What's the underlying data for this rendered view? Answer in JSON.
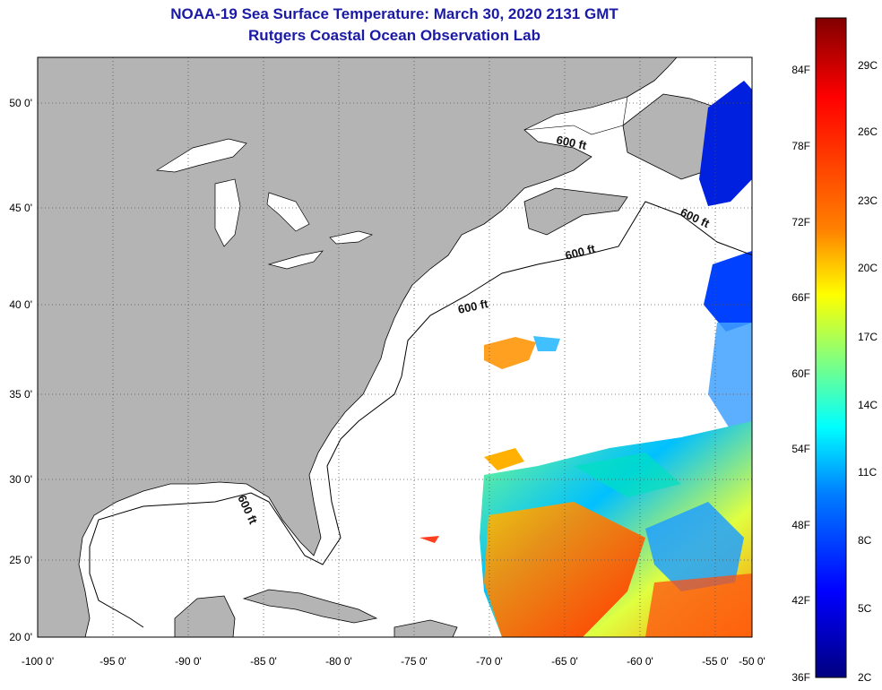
{
  "header": {
    "title": "NOAA-19 Sea Surface Temperature:  March 30, 2020 2131 GMT",
    "subtitle": "Rutgers Coastal Ocean Observation Lab"
  },
  "map": {
    "longitude_labels": [
      "-100 0'",
      "-95 0'",
      "-90 0'",
      "-85 0'",
      "-80 0'",
      "-75 0'",
      "-70 0'",
      "-65 0'",
      "-60 0'",
      "-55 0'",
      "-50 0'"
    ],
    "latitude_labels": [
      "50 0'",
      "45 0'",
      "40 0'",
      "35 0'",
      "30 0'",
      "25 0'",
      "20 0'"
    ],
    "depth_contour_labels": [
      "600 ft",
      "600 ft",
      "600 ft",
      "600 ft",
      "600 ft"
    ],
    "colors": {
      "land": "#b4b4b4",
      "ocean_no_data": "#ffffff",
      "graticule": "#555555"
    }
  },
  "colorbar": {
    "fahrenheit_labels": [
      "84F",
      "78F",
      "72F",
      "66F",
      "60F",
      "54F",
      "48F",
      "42F",
      "36F"
    ],
    "celsius_labels": [
      "29C",
      "26C",
      "23C",
      "20C",
      "17C",
      "14C",
      "11C",
      "8C",
      "5C",
      "2C"
    ],
    "gradient": [
      "#800000",
      "#ff0000",
      "#ff8000",
      "#ffff00",
      "#80ff80",
      "#00ffff",
      "#0080ff",
      "#0000ff",
      "#000080"
    ]
  }
}
